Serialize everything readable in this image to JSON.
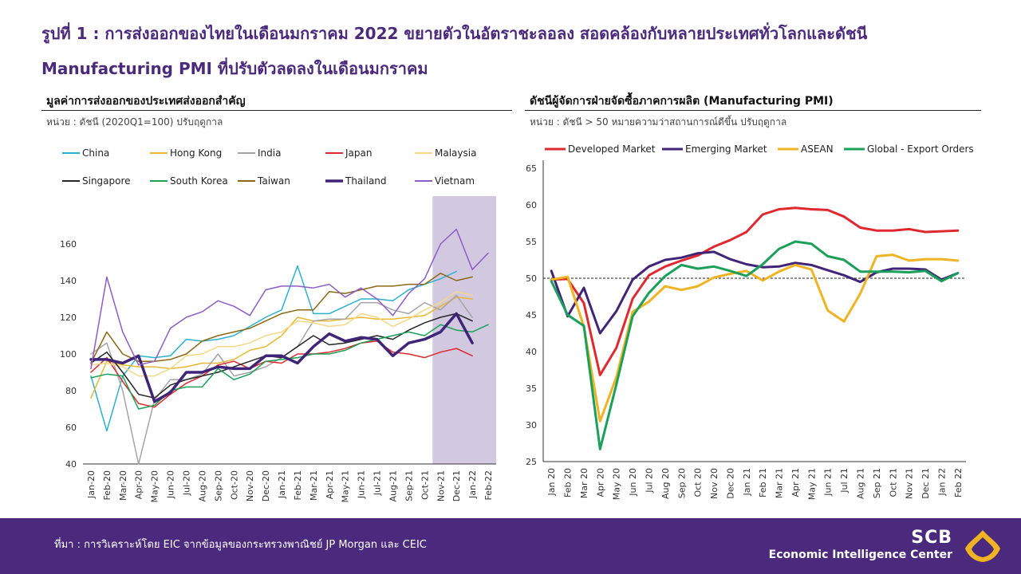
{
  "title": {
    "line1": "รูปที่ 1 : การส่งออกของไทยในเดือนมกราคม 2022 ขยายตัวในอัตราชะลอลง สอดคล้องกับหลายประเทศทั่วโลกและดัชนี",
    "line2": "Manufacturing PMI ที่ปรับตัวลดลงในเดือนมกราคม"
  },
  "left_panel": {
    "title": "มูลค่าการส่งออกของประเทศส่งออกสำคัญ",
    "unit": "หน่วย : ดัชนี (2020Q1=100) ปรับฤดูกาล"
  },
  "right_panel": {
    "title": "ดัชนีผู้จัดการฝ่ายจัดซื้อภาคการผลิต (Manufacturing PMI)",
    "unit": "หน่วย : ดัชนี > 50 หมายความว่าสถานการณ์ดีขึ้น ปรับฤดูกาล"
  },
  "footer": {
    "source": "ที่มา : การวิเคราะห์โดย EIC จากข้อมูลของกระทรวงพาณิชย์ JP Morgan และ CEIC",
    "brand": "SCB",
    "subbrand": "Economic Intelligence Center"
  },
  "chart_data": [
    {
      "type": "line",
      "categories": [
        "Jan-20",
        "Feb-20",
        "Mar-20",
        "Apr-20",
        "May-20",
        "Jun-20",
        "Jul-20",
        "Aug-20",
        "Sep-20",
        "Oct-20",
        "Nov-20",
        "Dec-20",
        "Jan-21",
        "Feb-21",
        "Mar-21",
        "Apr-21",
        "May-21",
        "Jun-21",
        "Jul-21",
        "Aug-21",
        "Sep-21",
        "Oct-21",
        "Nov-21",
        "Dec-21",
        "Jan-22",
        "Feb-22"
      ],
      "ylim": [
        40,
        170
      ],
      "yticks": [
        40,
        60,
        80,
        100,
        120,
        140,
        160
      ],
      "shaded_range": [
        "Nov-21",
        "Feb-22"
      ],
      "highlight_color": "#d2c9e0",
      "legend_placement": "top",
      "series": [
        {
          "name": "China",
          "color": "#2bb0d1",
          "width": 1.5,
          "values": [
            88,
            58,
            88,
            99,
            98,
            99,
            108,
            107,
            108,
            110,
            115,
            120,
            124,
            148,
            122,
            122,
            126,
            130,
            130,
            129,
            135,
            138,
            141,
            145,
            null,
            null
          ]
        },
        {
          "name": "Hong Kong",
          "color": "#e8b830",
          "width": 1.5,
          "values": [
            76,
            96,
            94,
            93,
            93,
            92,
            93,
            95,
            95,
            97,
            102,
            104,
            110,
            120,
            118,
            118,
            119,
            120,
            119,
            119,
            120,
            121,
            126,
            131,
            130,
            null
          ]
        },
        {
          "name": "India",
          "color": "#a5a5a5",
          "width": 1.5,
          "values": [
            100,
            106,
            80,
            40,
            75,
            86,
            86,
            89,
            100,
            88,
            90,
            93,
            98,
            104,
            118,
            119,
            119,
            128,
            128,
            124,
            122,
            128,
            124,
            132,
            120,
            null
          ]
        },
        {
          "name": "Japan",
          "color": "#e0282e",
          "width": 1.5,
          "values": [
            90,
            98,
            85,
            73,
            71,
            78,
            84,
            88,
            94,
            96,
            92,
            96,
            95,
            100,
            100,
            101,
            103,
            106,
            107,
            101,
            100,
            98,
            101,
            103,
            99,
            null
          ]
        },
        {
          "name": "Malaysia",
          "color": "#f4d885",
          "width": 1.5,
          "values": [
            94,
            95,
            93,
            88,
            88,
            92,
            99,
            100,
            104,
            104,
            106,
            110,
            112,
            118,
            117,
            115,
            116,
            122,
            120,
            115,
            119,
            124,
            128,
            134,
            132,
            null
          ]
        },
        {
          "name": "Singapore",
          "color": "#262626",
          "width": 1.5,
          "values": [
            95,
            101,
            90,
            78,
            76,
            83,
            86,
            88,
            90,
            93,
            96,
            99,
            98,
            104,
            110,
            105,
            106,
            108,
            110,
            108,
            113,
            117,
            120,
            122,
            118,
            null
          ]
        },
        {
          "name": "South Korea",
          "color": "#1ba05a",
          "width": 1.5,
          "values": [
            87,
            89,
            88,
            70,
            72,
            80,
            82,
            82,
            92,
            86,
            89,
            96,
            97,
            98,
            100,
            100,
            102,
            106,
            108,
            110,
            112,
            110,
            116,
            113,
            112,
            116
          ]
        },
        {
          "name": "Taiwan",
          "color": "#8b6914",
          "width": 1.5,
          "values": [
            95,
            112,
            100,
            96,
            96,
            97,
            100,
            107,
            110,
            112,
            114,
            118,
            122,
            124,
            124,
            134,
            133,
            135,
            137,
            137,
            138,
            138,
            144,
            140,
            142,
            null
          ]
        },
        {
          "name": "Thailand",
          "color": "#3f2477",
          "width": 3.5,
          "values": [
            97,
            97,
            95,
            99,
            74,
            79,
            90,
            90,
            93,
            92,
            92,
            99,
            99,
            95,
            104,
            111,
            107,
            109,
            108,
            99,
            106,
            108,
            112,
            122,
            106,
            null
          ]
        },
        {
          "name": "Vietnam",
          "color": "#8d5cc5",
          "width": 1.5,
          "values": [
            92,
            142,
            112,
            94,
            96,
            114,
            120,
            123,
            129,
            126,
            121,
            135,
            137,
            137,
            136,
            138,
            131,
            136,
            130,
            121,
            133,
            141,
            160,
            168,
            146,
            155
          ]
        }
      ]
    },
    {
      "type": "line",
      "categories": [
        "Jan 20",
        "Feb 20",
        "Mar 20",
        "Apr 20",
        "May 20",
        "Jun 20",
        "Jul 20",
        "Aug 20",
        "Sep 20",
        "Oct 20",
        "Nov 20",
        "Dec 20",
        "Jan 21",
        "Feb 21",
        "Mar 21",
        "Apr 21",
        "May 21",
        "Jun 21",
        "Jul 21",
        "Aug 21",
        "Sep 21",
        "Oct 21",
        "Nov 21",
        "Dec 21",
        "Jan 22",
        "Feb 22"
      ],
      "ylim": [
        25,
        65
      ],
      "yticks": [
        25,
        30,
        35,
        40,
        45,
        50,
        55,
        60,
        65
      ],
      "reference_line": 50,
      "legend_placement": "top",
      "series": [
        {
          "name": "Developed Market",
          "color": "#e0282e",
          "width": 3,
          "values": [
            49.8,
            49.9,
            46.6,
            36.8,
            40.5,
            47.2,
            50.4,
            51.6,
            52.4,
            53.1,
            54.3,
            55.2,
            56.3,
            58.7,
            59.4,
            59.6,
            59.4,
            59.3,
            58.4,
            56.9,
            56.5,
            56.5,
            56.7,
            56.3,
            56.4,
            56.5
          ]
        },
        {
          "name": "Emerging Market",
          "color": "#3f2477",
          "width": 3,
          "values": [
            51.0,
            44.8,
            48.7,
            42.5,
            45.5,
            49.8,
            51.6,
            52.5,
            52.8,
            53.4,
            53.6,
            52.6,
            51.9,
            51.5,
            51.6,
            52.1,
            51.8,
            51.1,
            50.4,
            49.5,
            50.8,
            51.3,
            51.3,
            51.2,
            49.8,
            50.7
          ]
        },
        {
          "name": "ASEAN",
          "color": "#f0b323",
          "width": 3,
          "values": [
            49.8,
            50.2,
            43.4,
            30.5,
            36.5,
            45.4,
            46.8,
            48.9,
            48.4,
            48.9,
            50.1,
            50.6,
            51.0,
            49.7,
            50.9,
            51.8,
            51.2,
            45.6,
            44.1,
            47.9,
            53.0,
            53.2,
            52.4,
            52.6,
            52.6,
            52.4
          ]
        },
        {
          "name": "Global - Export Orders",
          "color": "#1ba05a",
          "width": 3,
          "values": [
            49.6,
            45.0,
            43.5,
            26.7,
            35.5,
            44.8,
            48.0,
            50.3,
            51.8,
            51.3,
            51.6,
            51.0,
            50.3,
            51.9,
            54.0,
            55.0,
            54.7,
            53.0,
            52.5,
            50.9,
            50.9,
            50.9,
            50.8,
            51.0,
            49.6,
            50.7
          ]
        }
      ]
    }
  ]
}
